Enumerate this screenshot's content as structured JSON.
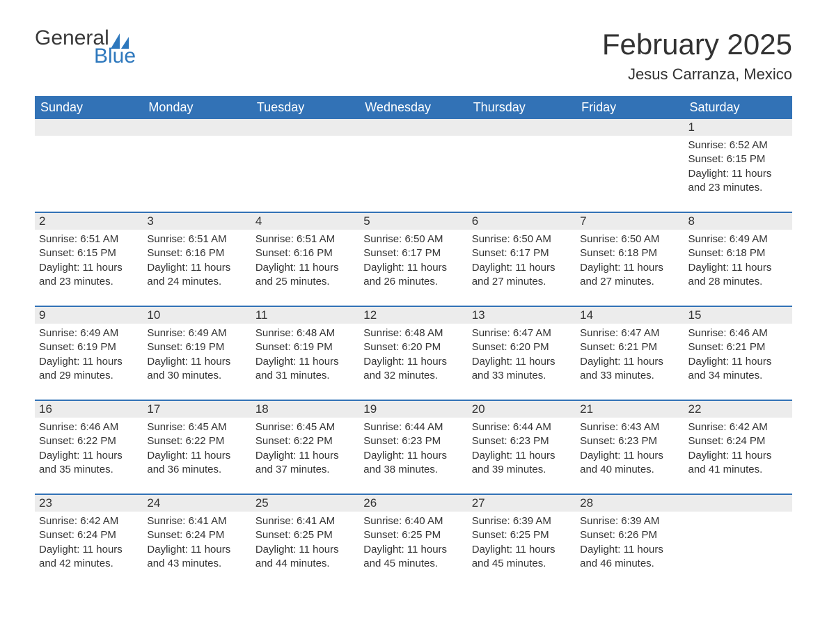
{
  "brand": {
    "word1": "General",
    "word2": "Blue",
    "logo_color": "#2e78bd"
  },
  "title": "February 2025",
  "location": "Jesus Carranza, Mexico",
  "colors": {
    "header_bg": "#3272b6",
    "header_text": "#ffffff",
    "daynum_bg": "#ececec",
    "rule": "#3272b6",
    "text": "#333333"
  },
  "typography": {
    "title_fontsize_pt": 32,
    "location_fontsize_pt": 17,
    "header_fontsize_pt": 14,
    "body_fontsize_pt": 11
  },
  "weekdays": [
    "Sunday",
    "Monday",
    "Tuesday",
    "Wednesday",
    "Thursday",
    "Friday",
    "Saturday"
  ],
  "weeks": [
    [
      null,
      null,
      null,
      null,
      null,
      null,
      {
        "n": "1",
        "sr": "6:52 AM",
        "ss": "6:15 PM",
        "dl": "11 hours and 23 minutes."
      }
    ],
    [
      {
        "n": "2",
        "sr": "6:51 AM",
        "ss": "6:15 PM",
        "dl": "11 hours and 23 minutes."
      },
      {
        "n": "3",
        "sr": "6:51 AM",
        "ss": "6:16 PM",
        "dl": "11 hours and 24 minutes."
      },
      {
        "n": "4",
        "sr": "6:51 AM",
        "ss": "6:16 PM",
        "dl": "11 hours and 25 minutes."
      },
      {
        "n": "5",
        "sr": "6:50 AM",
        "ss": "6:17 PM",
        "dl": "11 hours and 26 minutes."
      },
      {
        "n": "6",
        "sr": "6:50 AM",
        "ss": "6:17 PM",
        "dl": "11 hours and 27 minutes."
      },
      {
        "n": "7",
        "sr": "6:50 AM",
        "ss": "6:18 PM",
        "dl": "11 hours and 27 minutes."
      },
      {
        "n": "8",
        "sr": "6:49 AM",
        "ss": "6:18 PM",
        "dl": "11 hours and 28 minutes."
      }
    ],
    [
      {
        "n": "9",
        "sr": "6:49 AM",
        "ss": "6:19 PM",
        "dl": "11 hours and 29 minutes."
      },
      {
        "n": "10",
        "sr": "6:49 AM",
        "ss": "6:19 PM",
        "dl": "11 hours and 30 minutes."
      },
      {
        "n": "11",
        "sr": "6:48 AM",
        "ss": "6:19 PM",
        "dl": "11 hours and 31 minutes."
      },
      {
        "n": "12",
        "sr": "6:48 AM",
        "ss": "6:20 PM",
        "dl": "11 hours and 32 minutes."
      },
      {
        "n": "13",
        "sr": "6:47 AM",
        "ss": "6:20 PM",
        "dl": "11 hours and 33 minutes."
      },
      {
        "n": "14",
        "sr": "6:47 AM",
        "ss": "6:21 PM",
        "dl": "11 hours and 33 minutes."
      },
      {
        "n": "15",
        "sr": "6:46 AM",
        "ss": "6:21 PM",
        "dl": "11 hours and 34 minutes."
      }
    ],
    [
      {
        "n": "16",
        "sr": "6:46 AM",
        "ss": "6:22 PM",
        "dl": "11 hours and 35 minutes."
      },
      {
        "n": "17",
        "sr": "6:45 AM",
        "ss": "6:22 PM",
        "dl": "11 hours and 36 minutes."
      },
      {
        "n": "18",
        "sr": "6:45 AM",
        "ss": "6:22 PM",
        "dl": "11 hours and 37 minutes."
      },
      {
        "n": "19",
        "sr": "6:44 AM",
        "ss": "6:23 PM",
        "dl": "11 hours and 38 minutes."
      },
      {
        "n": "20",
        "sr": "6:44 AM",
        "ss": "6:23 PM",
        "dl": "11 hours and 39 minutes."
      },
      {
        "n": "21",
        "sr": "6:43 AM",
        "ss": "6:23 PM",
        "dl": "11 hours and 40 minutes."
      },
      {
        "n": "22",
        "sr": "6:42 AM",
        "ss": "6:24 PM",
        "dl": "11 hours and 41 minutes."
      }
    ],
    [
      {
        "n": "23",
        "sr": "6:42 AM",
        "ss": "6:24 PM",
        "dl": "11 hours and 42 minutes."
      },
      {
        "n": "24",
        "sr": "6:41 AM",
        "ss": "6:24 PM",
        "dl": "11 hours and 43 minutes."
      },
      {
        "n": "25",
        "sr": "6:41 AM",
        "ss": "6:25 PM",
        "dl": "11 hours and 44 minutes."
      },
      {
        "n": "26",
        "sr": "6:40 AM",
        "ss": "6:25 PM",
        "dl": "11 hours and 45 minutes."
      },
      {
        "n": "27",
        "sr": "6:39 AM",
        "ss": "6:25 PM",
        "dl": "11 hours and 45 minutes."
      },
      {
        "n": "28",
        "sr": "6:39 AM",
        "ss": "6:26 PM",
        "dl": "11 hours and 46 minutes."
      },
      null
    ]
  ],
  "labels": {
    "sunrise": "Sunrise: ",
    "sunset": "Sunset: ",
    "daylight": "Daylight: "
  }
}
